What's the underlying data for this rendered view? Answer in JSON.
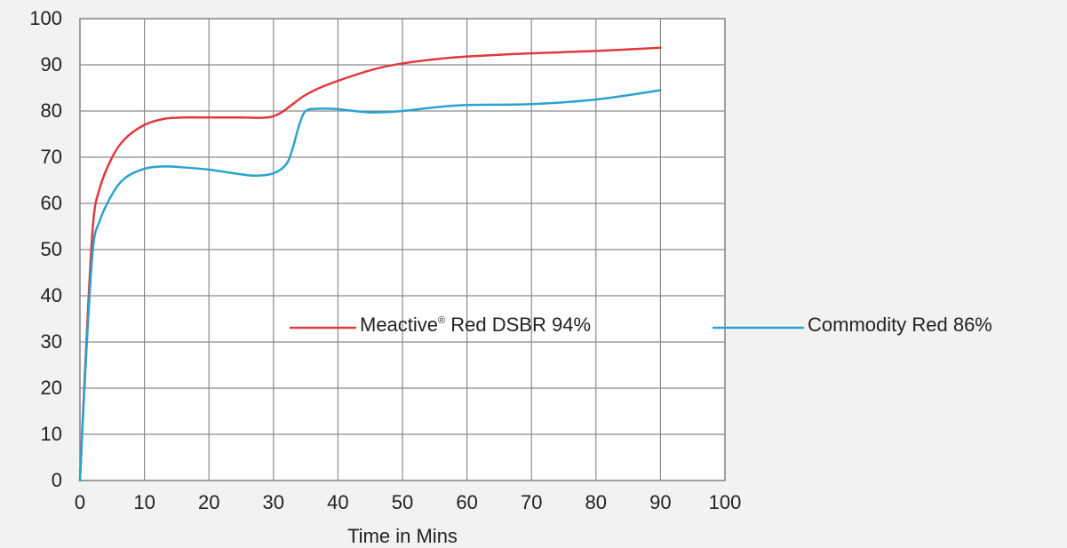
{
  "chart_data": {
    "type": "line",
    "title": "",
    "xlabel": "Time in Mins",
    "ylabel": "",
    "xlim": [
      0,
      100
    ],
    "ylim": [
      0,
      100
    ],
    "x_ticks": [
      0,
      10,
      20,
      30,
      40,
      50,
      60,
      70,
      80,
      90,
      100
    ],
    "y_ticks": [
      0,
      10,
      20,
      30,
      40,
      50,
      60,
      70,
      80,
      90,
      100
    ],
    "grid": true,
    "legend_position": "center-right",
    "series": [
      {
        "name": "Meactive",
        "name_superscript": "®",
        "name_suffix": " Red DSBR 94%",
        "color": "#e0393e",
        "x": [
          0,
          1,
          2,
          3,
          5,
          7,
          10,
          13,
          16,
          20,
          25,
          29,
          31,
          33,
          35,
          38,
          42,
          46,
          50,
          55,
          60,
          70,
          80,
          90
        ],
        "y": [
          0,
          30,
          55,
          63,
          70,
          74,
          77,
          78.3,
          78.6,
          78.6,
          78.6,
          78.6,
          79.5,
          81.5,
          83.5,
          85.5,
          87.5,
          89.2,
          90.3,
          91.2,
          91.8,
          92.5,
          93,
          93.7
        ]
      },
      {
        "name": "Commodity Red 86%",
        "color": "#2aa3d0",
        "x": [
          0,
          1,
          2,
          3,
          5,
          7,
          10,
          13,
          16,
          20,
          24,
          27,
          30,
          32,
          33,
          34,
          35,
          37,
          40,
          45,
          50,
          55,
          60,
          70,
          80,
          90
        ],
        "y": [
          0,
          28,
          50,
          56,
          62,
          65.5,
          67.5,
          68,
          67.8,
          67.3,
          66.5,
          66,
          66.5,
          68.5,
          72,
          77,
          80,
          80.5,
          80.4,
          79.7,
          80,
          80.8,
          81.3,
          81.5,
          82.5,
          84.5
        ]
      }
    ]
  }
}
